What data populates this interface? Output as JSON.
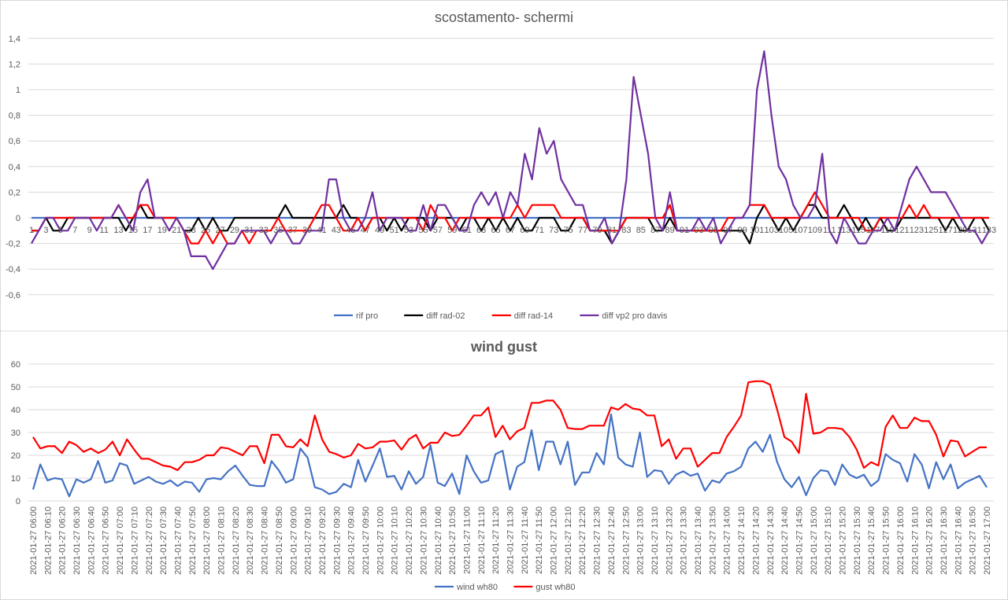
{
  "chart_data": [
    {
      "type": "line",
      "title": "scostamento- schermi",
      "ylim": [
        -0.6,
        1.4
      ],
      "y_tick_labels": [
        "1,4",
        "1,2",
        "1",
        "0,8",
        "0,6",
        "0,4",
        "0,2",
        "0",
        "-0,2",
        "-0,4",
        "-0,6"
      ],
      "y_tick_values": [
        1.4,
        1.2,
        1.0,
        0.8,
        0.6,
        0.4,
        0.2,
        0,
        -0.2,
        -0.4,
        -0.6
      ],
      "grid": true,
      "legend": "bottom",
      "x_tick_labels": [
        "1",
        "3",
        "5",
        "7",
        "9",
        "11",
        "13",
        "15",
        "17",
        "19",
        "21",
        "23",
        "25",
        "27",
        "29",
        "31",
        "33",
        "35",
        "37",
        "39",
        "41",
        "43",
        "45",
        "47",
        "49",
        "51",
        "53",
        "55",
        "57",
        "59",
        "61",
        "63",
        "65",
        "67",
        "69",
        "71",
        "73",
        "75",
        "77",
        "79",
        "81",
        "83",
        "85",
        "87",
        "89",
        "91",
        "93",
        "95",
        "97",
        "99",
        "101",
        "103",
        "105",
        "107",
        "109",
        "111",
        "113",
        "115",
        "117",
        "119",
        "121",
        "123",
        "125",
        "127",
        "129",
        "131",
        "133"
      ],
      "series": [
        {
          "name": "rif pro",
          "color": "#4472C4",
          "values": [
            0,
            0,
            0,
            0,
            0,
            0,
            0,
            0,
            0,
            0,
            0,
            0,
            0,
            0,
            0,
            0,
            0,
            0,
            0,
            0,
            0,
            0,
            0,
            0,
            0,
            0,
            0,
            0,
            0,
            0,
            0,
            0,
            0,
            0,
            0,
            0,
            0,
            0,
            0,
            0,
            0,
            0,
            0,
            0,
            0,
            0,
            0,
            0,
            0,
            0,
            0,
            0,
            0,
            0,
            0,
            0,
            0,
            0,
            0,
            0,
            0,
            0,
            0,
            0,
            0,
            0,
            0,
            0,
            0,
            0,
            0,
            0,
            0,
            0,
            0,
            0,
            0,
            0,
            0,
            0,
            0,
            0,
            0,
            0,
            0,
            0,
            0,
            0,
            0,
            0,
            0,
            0,
            0,
            0,
            0,
            0,
            0,
            0,
            0,
            0,
            0,
            0,
            0,
            0,
            0,
            0,
            0,
            0,
            0,
            0,
            0,
            0,
            0,
            0,
            0,
            0,
            0,
            0,
            0,
            0,
            0,
            0,
            0,
            0,
            0,
            0,
            0,
            0,
            0,
            0,
            0,
            0,
            0
          ]
        },
        {
          "name": "diff rad-02",
          "color": "#000000",
          "values": [
            -0.1,
            -0.1,
            0,
            -0.1,
            -0.1,
            0,
            0,
            0,
            0,
            0,
            0,
            0,
            0,
            -0.1,
            0,
            0.1,
            0,
            0,
            0,
            0,
            0,
            -0.1,
            -0.1,
            0,
            -0.1,
            0,
            -0.1,
            -0.1,
            0,
            0,
            0,
            0,
            0,
            0,
            0,
            0.1,
            0,
            0,
            0,
            0,
            0,
            0,
            0,
            0.1,
            0,
            0,
            -0.1,
            0,
            0,
            -0.1,
            0,
            -0.1,
            0,
            0,
            0,
            -0.1,
            0,
            0,
            0,
            -0.1,
            0,
            0,
            -0.1,
            0,
            -0.1,
            0,
            -0.1,
            0,
            -0.1,
            -0.1,
            0,
            0,
            0,
            -0.1,
            -0.1,
            0,
            0,
            -0.1,
            -0.1,
            -0.1,
            -0.2,
            -0.1,
            0,
            0,
            0,
            0,
            -0.1,
            -0.1,
            0,
            -0.1,
            -0.1,
            -0.1,
            -0.1,
            -0.1,
            -0.1,
            -0.1,
            -0.1,
            -0.1,
            -0.1,
            -0.2,
            0,
            0.1,
            0,
            -0.1,
            0,
            -0.1,
            0,
            0.1,
            0.1,
            0,
            0,
            0,
            0.1,
            0,
            -0.1,
            0,
            -0.1,
            0,
            -0.1,
            -0.1,
            0,
            0,
            0,
            0,
            0,
            0,
            -0.1,
            0,
            -0.1,
            -0.1,
            0,
            0,
            -0.1
          ]
        },
        {
          "name": "diff rad-14",
          "color": "#FF0000",
          "values": [
            -0.1,
            -0.1,
            0,
            0,
            0,
            0,
            0,
            0,
            0,
            0,
            0,
            0,
            0.1,
            0,
            0,
            0.1,
            0.1,
            0,
            0,
            0,
            0,
            -0.1,
            -0.2,
            -0.2,
            -0.1,
            -0.2,
            -0.1,
            -0.2,
            -0.2,
            -0.1,
            -0.2,
            -0.1,
            -0.1,
            -0.1,
            0,
            -0.1,
            -0.1,
            -0.1,
            -0.1,
            0,
            0.1,
            0.1,
            0,
            -0.1,
            -0.1,
            0,
            -0.1,
            0,
            0,
            0,
            0,
            0,
            0,
            0,
            -0.1,
            0.1,
            0,
            0,
            -0.1,
            0,
            0,
            0,
            0,
            0,
            0,
            0,
            0,
            0.1,
            0,
            0.1,
            0.1,
            0.1,
            0.1,
            0,
            0,
            0,
            0,
            -0.1,
            -0.1,
            -0.1,
            -0.1,
            -0.1,
            0,
            0,
            0,
            0,
            0,
            0,
            0.1,
            -0.1,
            -0.1,
            -0.1,
            -0.1,
            -0.1,
            -0.1,
            -0.1,
            0,
            0,
            0,
            0.1,
            0.1,
            0.1,
            0,
            0,
            0,
            0,
            0,
            0.1,
            0.2,
            0.1,
            0,
            0,
            0,
            0,
            0,
            -0.1,
            -0.1,
            0,
            0,
            0,
            0,
            0.1,
            0,
            0.1,
            0,
            0,
            0,
            0,
            0,
            0,
            0,
            0,
            0
          ]
        },
        {
          "name": "diff vp2 pro davis",
          "color": "#7030A0",
          "values": [
            -0.2,
            -0.1,
            0,
            0,
            -0.1,
            -0.1,
            0,
            0,
            0,
            -0.1,
            0,
            0,
            0.1,
            0,
            -0.1,
            0.2,
            0.3,
            0,
            0,
            -0.1,
            0,
            -0.1,
            -0.3,
            -0.3,
            -0.3,
            -0.4,
            -0.3,
            -0.2,
            -0.2,
            -0.1,
            -0.1,
            -0.1,
            -0.1,
            -0.2,
            -0.1,
            -0.1,
            -0.2,
            -0.2,
            -0.1,
            -0.1,
            -0.1,
            0.3,
            0.3,
            0,
            -0.1,
            -0.1,
            0,
            0.2,
            -0.1,
            0,
            0,
            0,
            -0.1,
            -0.1,
            0.1,
            -0.1,
            0.1,
            0.1,
            0,
            -0.1,
            -0.1,
            0.1,
            0.2,
            0.1,
            0.2,
            0,
            0.2,
            0.1,
            0.5,
            0.3,
            0.7,
            0.5,
            0.6,
            0.3,
            0.2,
            0.1,
            0.1,
            -0.1,
            -0.1,
            0,
            -0.2,
            -0.1,
            0.3,
            1.1,
            0.8,
            0.5,
            0,
            -0.1,
            0.2,
            -0.1,
            -0.1,
            -0.1,
            0,
            -0.1,
            0,
            -0.2,
            -0.1,
            0,
            0,
            0.1,
            1.0,
            1.3,
            0.8,
            0.4,
            0.3,
            0.1,
            0,
            0,
            0.1,
            0.5,
            -0.1,
            -0.2,
            0,
            -0.1,
            -0.2,
            -0.2,
            -0.1,
            -0.1,
            0,
            -0.1,
            0.1,
            0.3,
            0.4,
            0.3,
            0.2,
            0.2,
            0.2,
            0.1,
            0,
            -0.1,
            -0.1,
            -0.2,
            -0.1
          ]
        }
      ]
    },
    {
      "type": "line",
      "title": "wind gust",
      "ylim": [
        0,
        60
      ],
      "y_tick_labels": [
        "60",
        "50",
        "40",
        "30",
        "20",
        "10",
        "0"
      ],
      "y_tick_values": [
        60,
        50,
        40,
        30,
        20,
        10,
        0
      ],
      "grid": true,
      "legend": "bottom",
      "x_tick_labels": [
        "2021-01-27 06:00",
        "2021-01-27 06:10",
        "2021-01-27 06:20",
        "2021-01-27 06:30",
        "2021-01-27 06:40",
        "2021-01-27 06:50",
        "2021-01-27 07:00",
        "2021-01-27 07:10",
        "2021-01-27 07:20",
        "2021-01-27 07:30",
        "2021-01-27 07:40",
        "2021-01-27 07:50",
        "2021-01-27 08:00",
        "2021-01-27 08:10",
        "2021-01-27 08:20",
        "2021-01-27 08:30",
        "2021-01-27 08:40",
        "2021-01-27 08:50",
        "2021-01-27 09:00",
        "2021-01-27 09:10",
        "2021-01-27 09:20",
        "2021-01-27 09:30",
        "2021-01-27 09:40",
        "2021-01-27 09:50",
        "2021-01-27 10:00",
        "2021-01-27 10:10",
        "2021-01-27 10:20",
        "2021-01-27 10:30",
        "2021-01-27 10:40",
        "2021-01-27 10:50",
        "2021-01-27 11:00",
        "2021-01-27 11:10",
        "2021-01-27 11:20",
        "2021-01-27 11:30",
        "2021-01-27 11:40",
        "2021-01-27 11:50",
        "2021-01-27 12:00",
        "2021-01-27 12:10",
        "2021-01-27 12:20",
        "2021-01-27 12:30",
        "2021-01-27 12:40",
        "2021-01-27 12:50",
        "2021-01-27 13:00",
        "2021-01-27 13:10",
        "2021-01-27 13:20",
        "2021-01-27 13:30",
        "2021-01-27 13:40",
        "2021-01-27 13:50",
        "2021-01-27 14:00",
        "2021-01-27 14:10",
        "2021-01-27 14:20",
        "2021-01-27 14:30",
        "2021-01-27 14:40",
        "2021-01-27 14:50",
        "2021-01-27 15:00",
        "2021-01-27 15:10",
        "2021-01-27 15:20",
        "2021-01-27 15:30",
        "2021-01-27 15:40",
        "2021-01-27 15:50",
        "2021-01-27 16:00",
        "2021-01-27 16:10",
        "2021-01-27 16:20",
        "2021-01-27 16:30",
        "2021-01-27 16:40",
        "2021-01-27 16:50",
        "2021-01-27 17:00"
      ],
      "series": [
        {
          "name": "wind wh80",
          "color": "#4472C4",
          "values": [
            5,
            16,
            9,
            10,
            9.5,
            2,
            9.5,
            8,
            9.5,
            17.5,
            8,
            9,
            16.5,
            15.5,
            7.5,
            9,
            10.5,
            8.5,
            7.5,
            9,
            6.5,
            8.5,
            8,
            4,
            9.5,
            10,
            9.5,
            13,
            15.5,
            11,
            7,
            6.5,
            6.5,
            17.5,
            13.5,
            8,
            9.5,
            23,
            19,
            6,
            5,
            3,
            4,
            7.5,
            6,
            18,
            8.5,
            15.5,
            23,
            10.5,
            11,
            5,
            13,
            7.5,
            10.5,
            24.5,
            8,
            6.5,
            12,
            3,
            20,
            13,
            8,
            9,
            20.5,
            22,
            5,
            15,
            17,
            31,
            13.5,
            26,
            26,
            16,
            26,
            7,
            12.5,
            12.5,
            21,
            16,
            38,
            19,
            16,
            15,
            30,
            10.5,
            13.5,
            13,
            7.5,
            11.5,
            13,
            11,
            12,
            4.5,
            9,
            8,
            12,
            13,
            15,
            23,
            26,
            21.5,
            29,
            17,
            9.5,
            6,
            10.5,
            2.5,
            10,
            13.5,
            13,
            7,
            16,
            11.5,
            10,
            11.5,
            6.5,
            9,
            20.5,
            18,
            16.5,
            8.5,
            20.5,
            16,
            5.5,
            17,
            9.5,
            16,
            5.5,
            8,
            9.5,
            11,
            6
          ]
        },
        {
          "name": "gust wh80",
          "color": "#FF0000",
          "values": [
            28,
            23,
            24,
            24,
            21,
            26,
            24.5,
            21.5,
            23,
            21,
            22.5,
            26,
            20,
            27,
            22.5,
            18.5,
            18.5,
            17,
            15.5,
            15,
            13.5,
            17,
            17,
            18,
            20,
            20,
            23.5,
            23,
            21.5,
            20,
            24,
            24,
            16.5,
            29,
            29,
            24,
            23.5,
            27,
            24,
            37.5,
            27,
            21.5,
            20.5,
            19,
            20,
            25,
            23,
            23.5,
            26,
            26,
            26.5,
            22.5,
            27,
            29,
            23,
            25.5,
            25.5,
            30,
            28.5,
            29,
            33,
            37.5,
            37.5,
            41,
            28,
            33,
            27,
            30.5,
            32,
            43,
            43,
            44,
            44,
            40,
            32,
            31.5,
            31.5,
            33,
            33,
            33,
            41,
            40,
            42.5,
            40.5,
            40,
            37.5,
            37.5,
            24,
            27,
            18.5,
            23,
            23,
            15,
            18,
            21,
            21,
            28,
            32.5,
            37.5,
            52,
            52.5,
            52.5,
            51,
            40,
            28,
            26,
            21,
            47,
            29.5,
            30,
            32,
            32,
            31.5,
            28,
            22.5,
            14.5,
            17,
            15.5,
            32.5,
            37.5,
            32,
            32,
            36.5,
            35,
            35,
            29,
            19.5,
            26.5,
            26,
            19.5,
            21.5,
            23.5,
            23.5
          ]
        }
      ]
    }
  ]
}
